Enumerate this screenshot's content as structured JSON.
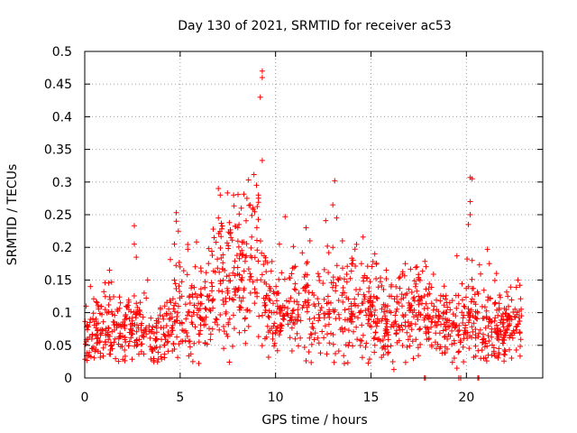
{
  "chart_data": {
    "type": "scatter",
    "title": "Day 130 of 2021, SRMTID for receiver ac53",
    "xlabel": "GPS time / hours",
    "ylabel": "SRMTID / TECUs",
    "xlim": [
      0,
      24
    ],
    "ylim": [
      0,
      0.5
    ],
    "xticks": [
      0,
      5,
      10,
      15,
      20
    ],
    "xtick_labels": [
      "0",
      "5",
      "10",
      "15",
      "20"
    ],
    "yticks": [
      0,
      0.05,
      0.1,
      0.15,
      0.2,
      0.25,
      0.3,
      0.35,
      0.4,
      0.45,
      0.5
    ],
    "ytick_labels": [
      "0",
      "0.05",
      "0.1",
      "0.15",
      "0.2",
      "0.25",
      "0.3",
      "0.35",
      "0.4",
      "0.45",
      "0.5"
    ],
    "grid": true,
    "marker": "+",
    "color": "#ff0000",
    "data_span_hours": [
      0,
      22.9
    ],
    "approx_point_count": 1500,
    "baseline_profile": [
      {
        "x": 0.0,
        "y": 0.06
      },
      {
        "x": 1.0,
        "y": 0.075
      },
      {
        "x": 2.0,
        "y": 0.075
      },
      {
        "x": 3.0,
        "y": 0.08
      },
      {
        "x": 3.8,
        "y": 0.055
      },
      {
        "x": 4.5,
        "y": 0.085
      },
      {
        "x": 5.0,
        "y": 0.11
      },
      {
        "x": 6.0,
        "y": 0.09
      },
      {
        "x": 7.0,
        "y": 0.15
      },
      {
        "x": 8.0,
        "y": 0.15
      },
      {
        "x": 9.0,
        "y": 0.185
      },
      {
        "x": 9.5,
        "y": 0.11
      },
      {
        "x": 10.0,
        "y": 0.1
      },
      {
        "x": 11.0,
        "y": 0.11
      },
      {
        "x": 12.0,
        "y": 0.095
      },
      {
        "x": 13.0,
        "y": 0.1
      },
      {
        "x": 14.0,
        "y": 0.11
      },
      {
        "x": 15.0,
        "y": 0.095
      },
      {
        "x": 16.0,
        "y": 0.09
      },
      {
        "x": 17.0,
        "y": 0.095
      },
      {
        "x": 18.0,
        "y": 0.1
      },
      {
        "x": 19.0,
        "y": 0.08
      },
      {
        "x": 20.0,
        "y": 0.09
      },
      {
        "x": 21.0,
        "y": 0.08
      },
      {
        "x": 22.0,
        "y": 0.075
      },
      {
        "x": 22.9,
        "y": 0.075
      }
    ],
    "spikes": [
      {
        "x": 0.3,
        "y": 0.14
      },
      {
        "x": 1.3,
        "y": 0.165
      },
      {
        "x": 2.6,
        "y": 0.233
      },
      {
        "x": 2.6,
        "y": 0.205
      },
      {
        "x": 2.7,
        "y": 0.185
      },
      {
        "x": 4.7,
        "y": 0.205
      },
      {
        "x": 4.8,
        "y": 0.253
      },
      {
        "x": 4.8,
        "y": 0.24
      },
      {
        "x": 7.0,
        "y": 0.29
      },
      {
        "x": 7.1,
        "y": 0.28
      },
      {
        "x": 7.0,
        "y": 0.245
      },
      {
        "x": 7.8,
        "y": 0.28
      },
      {
        "x": 8.5,
        "y": 0.275
      },
      {
        "x": 8.2,
        "y": 0.26
      },
      {
        "x": 8.8,
        "y": 0.26
      },
      {
        "x": 9.0,
        "y": 0.295
      },
      {
        "x": 9.1,
        "y": 0.28
      },
      {
        "x": 9.3,
        "y": 0.47
      },
      {
        "x": 9.3,
        "y": 0.46
      },
      {
        "x": 9.2,
        "y": 0.43
      },
      {
        "x": 9.3,
        "y": 0.333
      },
      {
        "x": 10.5,
        "y": 0.247
      },
      {
        "x": 10.2,
        "y": 0.205
      },
      {
        "x": 11.6,
        "y": 0.23
      },
      {
        "x": 11.8,
        "y": 0.21
      },
      {
        "x": 13.0,
        "y": 0.265
      },
      {
        "x": 13.1,
        "y": 0.302
      },
      {
        "x": 13.2,
        "y": 0.245
      },
      {
        "x": 13.0,
        "y": 0.2
      },
      {
        "x": 13.5,
        "y": 0.21
      },
      {
        "x": 15.2,
        "y": 0.19
      },
      {
        "x": 14.5,
        "y": 0.175
      },
      {
        "x": 15.8,
        "y": 0.165
      },
      {
        "x": 16.8,
        "y": 0.175
      },
      {
        "x": 17.4,
        "y": 0.17
      },
      {
        "x": 19.5,
        "y": 0.187
      },
      {
        "x": 20.2,
        "y": 0.307
      },
      {
        "x": 20.3,
        "y": 0.305
      },
      {
        "x": 20.2,
        "y": 0.27
      },
      {
        "x": 20.2,
        "y": 0.25
      },
      {
        "x": 20.1,
        "y": 0.235
      },
      {
        "x": 20.3,
        "y": 0.18
      },
      {
        "x": 21.1,
        "y": 0.197
      },
      {
        "x": 21.2,
        "y": 0.175
      },
      {
        "x": 22.7,
        "y": 0.15
      },
      {
        "x": 22.8,
        "y": 0.142
      }
    ],
    "low_points": [
      {
        "x": 16.2,
        "y": 0.013
      },
      {
        "x": 17.8,
        "y": 0.0
      },
      {
        "x": 17.85,
        "y": 0.0
      },
      {
        "x": 19.6,
        "y": 0.0
      },
      {
        "x": 19.7,
        "y": 0.0
      },
      {
        "x": 20.6,
        "y": 0.0
      },
      {
        "x": 20.65,
        "y": 0.0
      },
      {
        "x": 19.5,
        "y": 0.015
      },
      {
        "x": 20.9,
        "y": 0.03
      }
    ]
  }
}
